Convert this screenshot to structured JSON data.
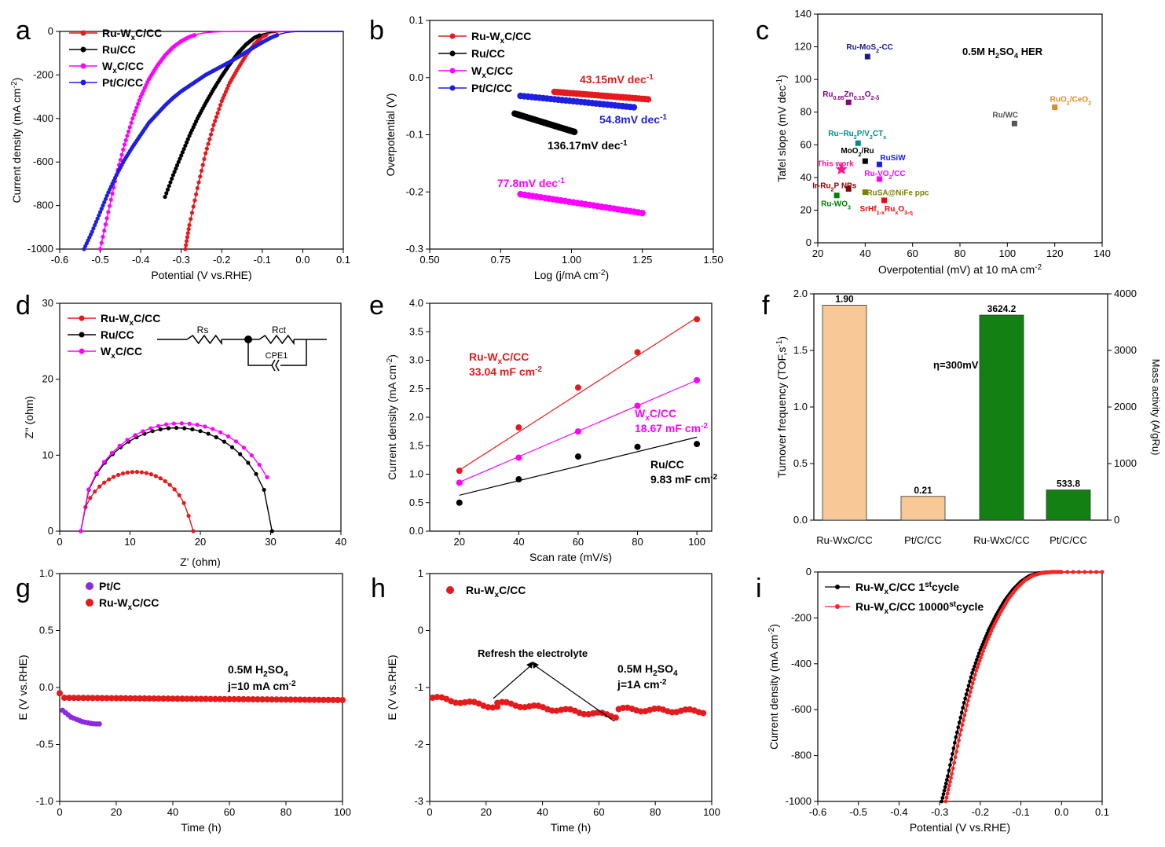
{
  "chart_data": [
    {
      "panel": "a",
      "type": "line",
      "xlabel": "Potential (V vs.RHE)",
      "ylabel": "Current density (mA cm⁻²)",
      "xlim": [
        -0.6,
        0.1
      ],
      "ylim": [
        -1000,
        0
      ],
      "xticks": [
        "-0.6",
        "-0.5",
        "-0.4",
        "-0.3",
        "-0.2",
        "-0.1",
        "0.0",
        "0.1"
      ],
      "yticks": [
        "-1000",
        "-800",
        "-600",
        "-400",
        "-200",
        "0"
      ],
      "series": [
        {
          "name": "Ru-WxC/CC",
          "color": "#e41a1c",
          "x": [
            -0.29,
            -0.28,
            -0.26,
            -0.24,
            -0.22,
            -0.2,
            -0.18,
            -0.16,
            -0.14,
            -0.12,
            -0.1,
            -0.08,
            -0.06,
            -0.04,
            0.0,
            0.1
          ],
          "y": [
            -1000,
            -890,
            -720,
            -560,
            -430,
            -320,
            -235,
            -170,
            -110,
            -60,
            -25,
            -8,
            -2,
            0,
            0,
            0
          ]
        },
        {
          "name": "Ru/CC",
          "color": "#000000",
          "x": [
            -0.34,
            -0.32,
            -0.3,
            -0.28,
            -0.26,
            -0.24,
            -0.22,
            -0.2,
            -0.18,
            -0.16,
            -0.14,
            -0.12,
            -0.1,
            -0.08,
            -0.06,
            0.0,
            0.1
          ],
          "y": [
            -760,
            -660,
            -570,
            -480,
            -400,
            -330,
            -265,
            -205,
            -150,
            -100,
            -60,
            -30,
            -12,
            -4,
            -1,
            0,
            0
          ]
        },
        {
          "name": "WxC/CC",
          "color": "#ff00ff",
          "x": [
            -0.5,
            -0.48,
            -0.46,
            -0.44,
            -0.42,
            -0.4,
            -0.38,
            -0.36,
            -0.34,
            -0.32,
            -0.3,
            -0.28,
            -0.26,
            -0.24,
            -0.22,
            -0.2,
            -0.15,
            0.0,
            0.1
          ],
          "y": [
            -1000,
            -830,
            -660,
            -520,
            -400,
            -300,
            -220,
            -160,
            -110,
            -72,
            -45,
            -25,
            -13,
            -6,
            -3,
            -1,
            0,
            0,
            0
          ]
        },
        {
          "name": "Pt/C/CC",
          "color": "#1f1fe0",
          "x": [
            -0.54,
            -0.52,
            -0.5,
            -0.48,
            -0.46,
            -0.44,
            -0.42,
            -0.4,
            -0.38,
            -0.36,
            -0.34,
            -0.32,
            -0.3,
            -0.28,
            -0.26,
            -0.24,
            -0.22,
            -0.2,
            -0.18,
            -0.16,
            -0.14,
            -0.12,
            -0.1,
            -0.08,
            -0.06,
            -0.04,
            -0.02,
            0.0,
            0.1
          ],
          "y": [
            -1000,
            -920,
            -830,
            -740,
            -660,
            -590,
            -530,
            -475,
            -420,
            -380,
            -340,
            -305,
            -275,
            -250,
            -225,
            -200,
            -180,
            -160,
            -140,
            -118,
            -95,
            -72,
            -50,
            -30,
            -14,
            -5,
            -1,
            0,
            0
          ]
        }
      ],
      "panel_label": "a"
    },
    {
      "panel": "b",
      "type": "scatter",
      "xlabel": "Log (j/mA cm⁻²)",
      "ylabel": "Overpotential (V)",
      "xlim": [
        0.5,
        1.5
      ],
      "ylim": [
        -0.3,
        0.1
      ],
      "xticks": [
        "0.50",
        "0.75",
        "1.00",
        "1.25",
        "1.50"
      ],
      "yticks": [
        "-0.3",
        "-0.2",
        "-0.1",
        "0.0",
        "0.1"
      ],
      "series": [
        {
          "name": "Ru-WxC/CC",
          "color": "#e41a1c",
          "x": [
            0.94,
            1.27
          ],
          "y": [
            -0.025,
            -0.038
          ]
        },
        {
          "name": "Ru/CC",
          "color": "#000000",
          "x": [
            0.8,
            1.01
          ],
          "y": [
            -0.063,
            -0.095
          ]
        },
        {
          "name": "WxC/CC",
          "color": "#ff00ff",
          "x": [
            0.82,
            1.25
          ],
          "y": [
            -0.204,
            -0.237
          ]
        },
        {
          "name": "Pt/C/CC",
          "color": "#1f1fe0",
          "x": [
            0.82,
            1.22
          ],
          "y": [
            -0.032,
            -0.052
          ]
        }
      ],
      "annotations": [
        "43.15mV dec⁻¹",
        "54.8mV dec⁻¹",
        "136.17mV dec⁻¹",
        "77.8mV dec⁻¹"
      ],
      "panel_label": "b"
    },
    {
      "panel": "c",
      "type": "scatter",
      "xlabel": "Overpotential (mV) at 10 mA cm⁻²",
      "ylabel": "Tafel slope (mV dec⁻¹)",
      "xlim": [
        20,
        140
      ],
      "ylim": [
        0,
        140
      ],
      "xticks": [
        "20",
        "40",
        "60",
        "80",
        "100",
        "120",
        "140"
      ],
      "yticks": [
        "0",
        "20",
        "40",
        "60",
        "80",
        "100",
        "120",
        "140"
      ],
      "title": "0.5M H₂SO₄ HER",
      "points": [
        {
          "label": "Ru-MoS₂-CC",
          "x": 41,
          "y": 114,
          "color": "#1a1a8c"
        },
        {
          "label": "Ru₀.₈₅Zn₀.₁₅O₂₋δ",
          "x": 33,
          "y": 86,
          "color": "#800080"
        },
        {
          "label": "RuO₂/CeO₂",
          "x": 120,
          "y": 83,
          "color": "#e08a2a"
        },
        {
          "label": "Ru/WC",
          "x": 103,
          "y": 73,
          "color": "#555555"
        },
        {
          "label": "Ru−Ru₂P/V₂CTₓ",
          "x": 37,
          "y": 61,
          "color": "#008b8b"
        },
        {
          "label": "MoO₂/Ru",
          "x": 40,
          "y": 50,
          "color": "#000000"
        },
        {
          "label": "RuSiW",
          "x": 46,
          "y": 48,
          "color": "#1a1aff"
        },
        {
          "label": "This work",
          "x": 30,
          "y": 45,
          "color": "#ff1493"
        },
        {
          "label": "Ru-VO₂/CC",
          "x": 46,
          "y": 39,
          "color": "#ff00ff"
        },
        {
          "label": "Ir-Ru₂P NPs",
          "x": 33,
          "y": 33,
          "color": "#8b0000"
        },
        {
          "label": "RuSA@NiFe ppc",
          "x": 40,
          "y": 31,
          "color": "#808000"
        },
        {
          "label": "Ru-WO₃",
          "x": 28,
          "y": 29,
          "color": "#008000"
        },
        {
          "label": "SrHf₁₋ₓRuₓO₃₋η",
          "x": 48,
          "y": 26,
          "color": "#ff0000"
        }
      ],
      "panel_label": "c"
    },
    {
      "panel": "d",
      "type": "scatter",
      "xlabel": "Z' (ohm)",
      "ylabel": "Z'' (ohm)",
      "xlim": [
        0,
        40
      ],
      "ylim": [
        0,
        30
      ],
      "xticks": [
        "0",
        "10",
        "20",
        "30",
        "40"
      ],
      "yticks": [
        "0",
        "10",
        "20",
        "30"
      ],
      "series": [
        {
          "name": "Ru-WxC/CC",
          "color": "#e41a1c",
          "center": 10.8,
          "radius": 7.8,
          "end": 19
        },
        {
          "name": "Ru/CC",
          "color": "#000000",
          "center": 16.6,
          "radius": 13.6,
          "end": 30.2
        },
        {
          "name": "WxC/CC",
          "color": "#ff00ff",
          "center": 17.2,
          "radius": 14.2,
          "end": 29.5
        }
      ],
      "circuit": {
        "rs": "Rs",
        "rct": "Rct",
        "cpe": "CPE1"
      },
      "panel_label": "d"
    },
    {
      "panel": "e",
      "type": "scatter",
      "xlabel": "Scan rate (mV/s)",
      "ylabel": "Current density (mA cm⁻²)",
      "xlim": [
        10,
        105
      ],
      "ylim": [
        0,
        4.0
      ],
      "xticks": [
        "20",
        "40",
        "60",
        "80",
        "100"
      ],
      "yticks": [
        "0.0",
        "0.5",
        "1.0",
        "1.5",
        "2.0",
        "2.5",
        "3.0",
        "3.5",
        "4.0"
      ],
      "series": [
        {
          "name": "Ru-WxC/CC",
          "color": "#e41a1c",
          "x": [
            20,
            40,
            60,
            80,
            100
          ],
          "y": [
            1.06,
            1.82,
            2.52,
            3.14,
            3.72
          ],
          "fit": [
            1.07,
            3.75
          ],
          "label": "Ru-WxC/CC",
          "value": "33.04 mF cm⁻²"
        },
        {
          "name": "WxC/CC",
          "color": "#ff00ff",
          "x": [
            20,
            40,
            60,
            80,
            100
          ],
          "y": [
            0.85,
            1.29,
            1.75,
            2.2,
            2.65
          ],
          "fit": [
            0.86,
            2.65
          ],
          "label": "WxC/CC",
          "value": "18.67 mF cm⁻²"
        },
        {
          "name": "Ru/CC",
          "color": "#000000",
          "x": [
            20,
            40,
            60,
            80,
            100
          ],
          "y": [
            0.5,
            0.91,
            1.31,
            1.48,
            1.53
          ],
          "fit": [
            0.63,
            1.65
          ],
          "label": "Ru/CC",
          "value": "9.83 mF cm⁻²"
        }
      ],
      "panel_label": "e"
    },
    {
      "panel": "f",
      "type": "bar",
      "ylabel": "Turnover frequency (TOF,s⁻¹)",
      "y2label": "Mass activity (A/gRu)",
      "ylim": [
        0,
        2.0
      ],
      "y2lim": [
        0,
        4000
      ],
      "yticks": [
        "0.0",
        "0.5",
        "1.0",
        "1.5",
        "2.0"
      ],
      "y2ticks": [
        "0",
        "1000",
        "2000",
        "3000",
        "4000"
      ],
      "categories": [
        "Ru-WxC/CC",
        "Pt/C/CC",
        "Ru-WxC/CC",
        "Pt/C/CC"
      ],
      "tof": [
        1.9,
        0.21
      ],
      "tof_labels": [
        "1.90",
        "0.21"
      ],
      "mass": [
        3624.2,
        533.8
      ],
      "mass_labels": [
        "3624.2",
        "533.8"
      ],
      "annotation": "η=300mV",
      "colors": {
        "tof": "#f8c896",
        "mass": "#138013"
      },
      "panel_label": "f"
    },
    {
      "panel": "g",
      "type": "scatter",
      "xlabel": "Time (h)",
      "ylabel": "E (V vs.RHE)",
      "xlim": [
        0,
        100
      ],
      "ylim": [
        -1.0,
        1.0
      ],
      "xticks": [
        "0",
        "20",
        "40",
        "60",
        "80",
        "100"
      ],
      "yticks": [
        "-1.0",
        "-0.5",
        "0.0",
        "0.5",
        "1.0"
      ],
      "series": [
        {
          "name": "Pt/C",
          "color": "#8a2be2",
          "x": [
            1,
            2,
            3,
            4,
            5,
            6,
            7,
            8,
            9,
            10,
            11,
            12,
            13,
            14
          ],
          "y": [
            -0.2,
            -0.22,
            -0.24,
            -0.26,
            -0.27,
            -0.28,
            -0.29,
            -0.3,
            -0.305,
            -0.31,
            -0.315,
            -0.318,
            -0.32,
            -0.32
          ]
        },
        {
          "name": "Ru-WxC/CC",
          "color": "#e41a1c",
          "x_start": 0,
          "x_end": 100,
          "y": -0.09,
          "points": 60
        }
      ],
      "annotations": [
        "0.5M H₂SO₄",
        "j=10 mA cm⁻²"
      ],
      "panel_label": "g"
    },
    {
      "panel": "h",
      "type": "scatter",
      "xlabel": "Time (h)",
      "ylabel": "E (V vs.RHE)",
      "xlim": [
        0,
        100
      ],
      "ylim": [
        -3,
        1
      ],
      "xticks": [
        "0",
        "20",
        "40",
        "60",
        "80",
        "100"
      ],
      "yticks": [
        "-3",
        "-2",
        "-1",
        "0",
        "1"
      ],
      "series": [
        {
          "name": "Ru-WxC/CC",
          "color": "#e41a1c",
          "segments": [
            [
              1,
              -1.18,
              24,
              -1.34
            ],
            [
              24,
              -1.27,
              66,
              -1.5
            ],
            [
              67,
              -1.38,
              97,
              -1.42
            ]
          ]
        }
      ],
      "annotations": [
        "Refresh the electrolyte",
        "0.5M H₂SO₄",
        "j=1A cm⁻²"
      ],
      "panel_label": "h"
    },
    {
      "panel": "i",
      "type": "line",
      "xlabel": "Potential (V vs.RHE)",
      "ylabel": "Current density (mA cm⁻²)",
      "xlim": [
        -0.6,
        0.1
      ],
      "ylim": [
        -1000,
        0
      ],
      "xticks": [
        "-0.6",
        "-0.5",
        "-0.4",
        "-0.3",
        "-0.2",
        "-0.1",
        "0.0",
        "0.1"
      ],
      "yticks": [
        "-1000",
        "-800",
        "-600",
        "-400",
        "-200",
        "0"
      ],
      "series": [
        {
          "name": "Ru-WxC/CC 1st cycle",
          "color": "#000000",
          "x": [
            -0.295,
            -0.28,
            -0.26,
            -0.24,
            -0.22,
            -0.2,
            -0.18,
            -0.16,
            -0.14,
            -0.12,
            -0.1,
            -0.08,
            -0.06,
            -0.04,
            -0.02,
            0.0,
            0.1
          ],
          "y": [
            -1000,
            -890,
            -720,
            -570,
            -440,
            -340,
            -255,
            -185,
            -125,
            -78,
            -42,
            -18,
            -6,
            -2,
            0,
            0,
            0
          ]
        },
        {
          "name": "Ru-WxC/CC 10000st cycle",
          "color": "#ff2020",
          "x": [
            -0.285,
            -0.27,
            -0.25,
            -0.23,
            -0.21,
            -0.19,
            -0.17,
            -0.15,
            -0.13,
            -0.11,
            -0.09,
            -0.07,
            -0.05,
            -0.03,
            -0.01,
            0.0,
            0.1
          ],
          "y": [
            -1000,
            -880,
            -710,
            -560,
            -430,
            -330,
            -245,
            -175,
            -115,
            -70,
            -36,
            -15,
            -5,
            -1,
            0,
            0,
            0
          ]
        }
      ],
      "panel_label": "i"
    }
  ],
  "legends": {
    "a": [
      "Ru-WxC/CC",
      "Ru/CC",
      "WxC/CC",
      "Pt/C/CC"
    ],
    "b": [
      "Ru-WxC/CC",
      "Ru/CC",
      "WxC/CC",
      "Pt/C/CC"
    ],
    "d": [
      "Ru-WxC/CC",
      "Ru/CC",
      "WxC/CC"
    ],
    "g": [
      "Pt/C",
      "Ru-WxC/CC"
    ],
    "h": [
      "Ru-WxC/CC"
    ],
    "i": [
      "Ru-WxC/CC 1st cycle",
      "Ru-WxC/CC 10000st cycle"
    ]
  }
}
